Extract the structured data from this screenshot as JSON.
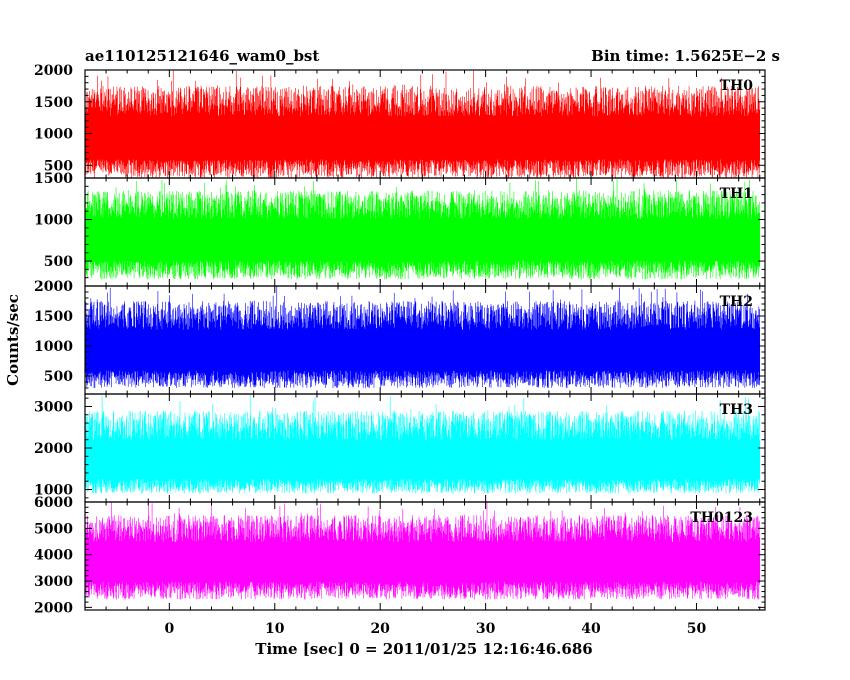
{
  "chart_data": {
    "type": "line",
    "title": "ae110125121646_wam0_bst",
    "subtitle": "Bin time: 1.5625E−2 s",
    "xlabel": "Time [sec] 0 = 2011/01/25 12:16:46.686",
    "ylabel": "Counts/sec",
    "xlim": [
      -8,
      56.5
    ],
    "x_data_range": [
      -8,
      56
    ],
    "x_ticks": [
      "0",
      "10",
      "20",
      "30",
      "40",
      "50"
    ],
    "grid": false,
    "panels": [
      {
        "name": "TH0",
        "color": "#ff0000",
        "ylim": [
          300,
          2000
        ],
        "yticks": [
          500,
          1000,
          1500,
          2000
        ],
        "mean": 950,
        "typical_min": 300,
        "typical_max": 1750,
        "peak_max": 2000
      },
      {
        "name": "TH1",
        "color": "#00ff00",
        "ylim": [
          200,
          1500
        ],
        "yticks": [
          500,
          1000,
          1500
        ],
        "mean": 780,
        "typical_min": 280,
        "typical_max": 1350,
        "peak_max": 1500
      },
      {
        "name": "TH2",
        "color": "#0000ff",
        "ylim": [
          200,
          2000
        ],
        "yticks": [
          500,
          1000,
          1500,
          2000
        ],
        "mean": 950,
        "typical_min": 300,
        "typical_max": 1750,
        "peak_max": 2000
      },
      {
        "name": "TH3",
        "color": "#00ffff",
        "ylim": [
          700,
          3300
        ],
        "yticks": [
          1000,
          2000,
          3000
        ],
        "mean": 1700,
        "typical_min": 900,
        "typical_max": 2900,
        "peak_max": 3300
      },
      {
        "name": "TH0123",
        "color": "#ff00ff",
        "ylim": [
          1900,
          6000
        ],
        "yticks": [
          2000,
          3000,
          4000,
          5000,
          6000
        ],
        "mean": 3800,
        "typical_min": 2300,
        "typical_max": 5500,
        "peak_max": 6000
      }
    ]
  }
}
